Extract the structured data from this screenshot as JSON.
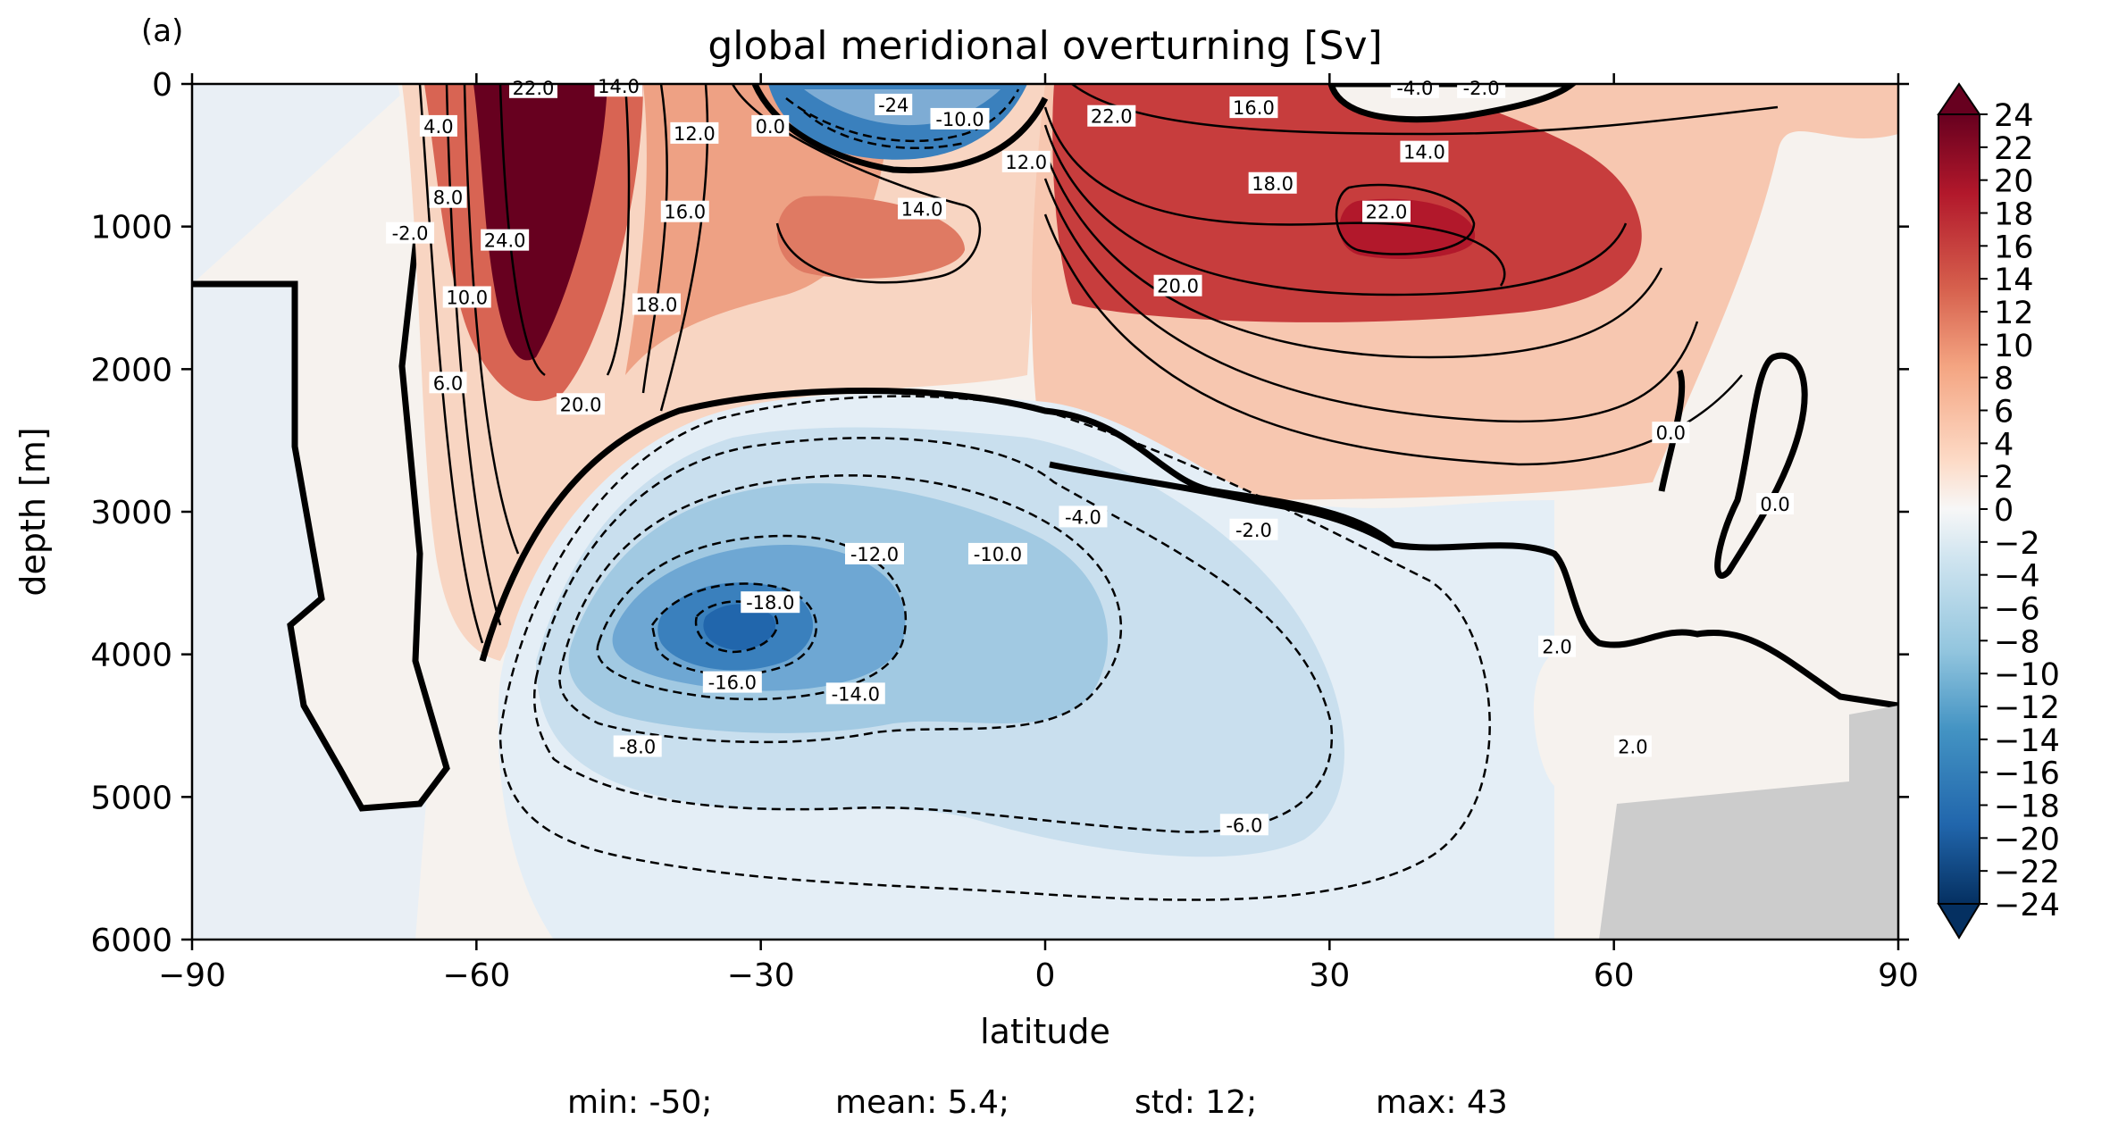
{
  "panel_label": "(a)",
  "stats": {
    "min": "min: -50;",
    "mean": "mean: 5.4;",
    "std": "std: 12;",
    "max": "max: 43"
  },
  "colors": {
    "deep_red": "#67001f",
    "red": "#b2182b",
    "salmon": "#e58267",
    "peach": "#f7c3aa",
    "light_peach": "#fbe3d4",
    "neutral": "#f6f2ee",
    "pale_blue": "#e4eef6",
    "light_blue": "#b4d4e8",
    "mid_blue": "#71abd5",
    "blue": "#3a80bd",
    "deep_blue": "#053061",
    "land": "#cccccc"
  },
  "chart_data": {
    "type": "heatmap",
    "title": "global meridional overturning [Sv]",
    "xlabel": "latitude",
    "ylabel": "depth [m]",
    "xlim": [
      -90,
      90
    ],
    "ylim": [
      6000,
      0
    ],
    "x_ticks": [
      "−90",
      "−60",
      "−30",
      "0",
      "30",
      "60",
      "90"
    ],
    "x_tick_values": [
      -90,
      -60,
      -30,
      0,
      30,
      60,
      90
    ],
    "y_ticks": [
      "0",
      "1000",
      "2000",
      "3000",
      "4000",
      "5000",
      "6000"
    ],
    "y_tick_values": [
      0,
      1000,
      2000,
      3000,
      4000,
      5000,
      6000
    ],
    "colorbar": {
      "min": -24,
      "max": 24,
      "step": 2,
      "extend": "both",
      "tick_labels": [
        "24",
        "22",
        "20",
        "18",
        "16",
        "14",
        "12",
        "10",
        "8",
        "6",
        "4",
        "2",
        "0",
        "−2",
        "−4",
        "−6",
        "−8",
        "−10",
        "−12",
        "−14",
        "−16",
        "−18",
        "−20",
        "−22",
        "−24"
      ]
    },
    "contour_labels": [
      {
        "text": "22.0",
        "lat": -54,
        "depth": 30
      },
      {
        "text": "14.0",
        "lat": -45,
        "depth": 20
      },
      {
        "text": "24.0",
        "lat": -57,
        "depth": 1100
      },
      {
        "text": "4.0",
        "lat": -64,
        "depth": 300
      },
      {
        "text": "8.0",
        "lat": -63,
        "depth": 800
      },
      {
        "text": "10.0",
        "lat": -61,
        "depth": 1500
      },
      {
        "text": "6.0",
        "lat": -63,
        "depth": 2100
      },
      {
        "text": "-2.0",
        "lat": -67,
        "depth": 1050
      },
      {
        "text": "12.0",
        "lat": -37,
        "depth": 350
      },
      {
        "text": "16.0",
        "lat": -38,
        "depth": 900
      },
      {
        "text": "18.0",
        "lat": -41,
        "depth": 1550
      },
      {
        "text": "20.0",
        "lat": -49,
        "depth": 2250
      },
      {
        "text": "0.0",
        "lat": -29,
        "depth": 300
      },
      {
        "text": "-10.0",
        "lat": -9,
        "depth": 250
      },
      {
        "text": "-24",
        "lat": -16,
        "depth": 150
      },
      {
        "text": "14.0",
        "lat": -13,
        "depth": 880
      },
      {
        "text": "12.0",
        "lat": -2,
        "depth": 550
      },
      {
        "text": "22.0",
        "lat": 7,
        "depth": 230
      },
      {
        "text": "16.0",
        "lat": 22,
        "depth": 170
      },
      {
        "text": "14.0",
        "lat": 40,
        "depth": 480
      },
      {
        "text": "18.0",
        "lat": 24,
        "depth": 700
      },
      {
        "text": "22.0",
        "lat": 36,
        "depth": 900
      },
      {
        "text": "20.0",
        "lat": 14,
        "depth": 1420
      },
      {
        "text": "-4.0",
        "lat": 39,
        "depth": 30
      },
      {
        "text": "-2.0",
        "lat": 46,
        "depth": 30
      },
      {
        "text": "0.0",
        "lat": 66,
        "depth": 2450
      },
      {
        "text": "0.0",
        "lat": 77,
        "depth": 2950
      },
      {
        "text": "-4.0",
        "lat": 4,
        "depth": 3040
      },
      {
        "text": "-2.0",
        "lat": 22,
        "depth": 3130
      },
      {
        "text": "-12.0",
        "lat": -18,
        "depth": 3300
      },
      {
        "text": "-10.0",
        "lat": -5,
        "depth": 3300
      },
      {
        "text": "-18.0",
        "lat": -29,
        "depth": 3640
      },
      {
        "text": "-16.0",
        "lat": -33,
        "depth": 4200
      },
      {
        "text": "-14.0",
        "lat": -20,
        "depth": 4280
      },
      {
        "text": "-8.0",
        "lat": -43,
        "depth": 4650
      },
      {
        "text": "-6.0",
        "lat": 21,
        "depth": 5200
      },
      {
        "text": "2.0",
        "lat": 54,
        "depth": 3950
      },
      {
        "text": "2.0",
        "lat": 62,
        "depth": 4650
      }
    ]
  }
}
